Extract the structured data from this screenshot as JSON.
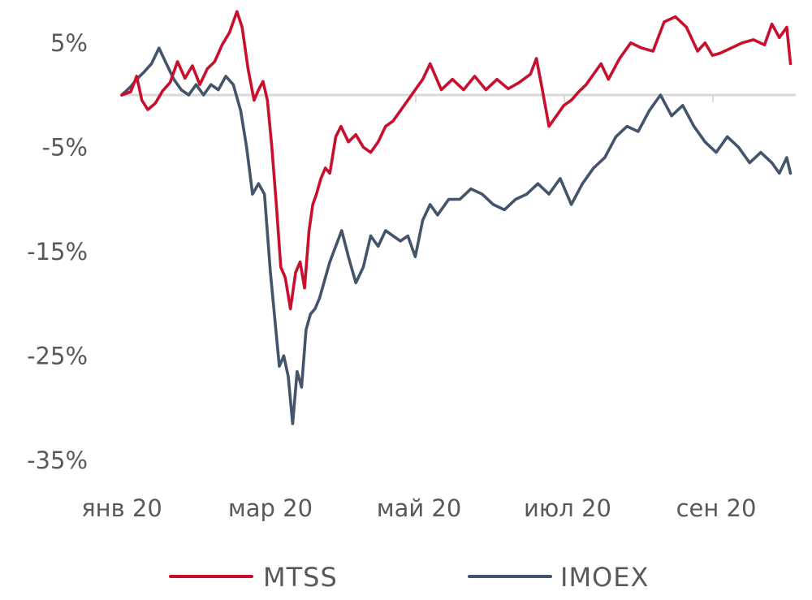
{
  "chart_data": {
    "type": "line",
    "title": "",
    "xlabel": "",
    "ylabel": "",
    "ylim": [
      -35,
      9
    ],
    "ytick_values": [
      5,
      -5,
      -15,
      -25,
      -35
    ],
    "ytick_labels": [
      "5%",
      "-5%",
      "-15%",
      "-25%",
      "-35%"
    ],
    "xlim": [
      0,
      9.0
    ],
    "xtick_positions": [
      0,
      2,
      4,
      6,
      8
    ],
    "xtick_labels": [
      "янв 20",
      "мар 20",
      "май 20",
      "июл 20",
      "сен 20"
    ],
    "grid": false,
    "zero_line": true,
    "legend_position": "bottom",
    "series": [
      {
        "name": "MTSS",
        "color": "#c8102e",
        "x": [
          0,
          0.12,
          0.2,
          0.27,
          0.35,
          0.45,
          0.55,
          0.65,
          0.75,
          0.85,
          0.95,
          1.05,
          1.15,
          1.25,
          1.35,
          1.45,
          1.55,
          1.62,
          1.7,
          1.78,
          1.84,
          1.9,
          1.96,
          2.02,
          2.08,
          2.14,
          2.2,
          2.27,
          2.34,
          2.4,
          2.46,
          2.52,
          2.57,
          2.62,
          2.68,
          2.74,
          2.8,
          2.88,
          2.95,
          3.05,
          3.15,
          3.25,
          3.35,
          3.45,
          3.55,
          3.65,
          3.75,
          3.85,
          3.95,
          4.05,
          4.15,
          4.3,
          4.45,
          4.6,
          4.75,
          4.9,
          5.05,
          5.2,
          5.35,
          5.5,
          5.58,
          5.66,
          5.75,
          5.85,
          5.95,
          6.05,
          6.15,
          6.25,
          6.35,
          6.45,
          6.55,
          6.7,
          6.85,
          7.0,
          7.15,
          7.3,
          7.45,
          7.6,
          7.75,
          7.85,
          7.95,
          8.05,
          8.2,
          8.35,
          8.5,
          8.65,
          8.75,
          8.85,
          8.95,
          9.0
        ],
        "values": [
          0,
          0.3,
          1.8,
          -0.5,
          -1.4,
          -0.8,
          0.4,
          1.2,
          3.2,
          1.6,
          2.8,
          1.0,
          2.5,
          3.2,
          4.8,
          6.0,
          8.0,
          6.5,
          2.5,
          -0.5,
          0.5,
          1.3,
          -0.5,
          -5.0,
          -10.5,
          -16.5,
          -17.5,
          -20.5,
          -17.0,
          -16.0,
          -18.5,
          -13.0,
          -10.5,
          -9.5,
          -8.0,
          -7.0,
          -7.5,
          -4.0,
          -3.0,
          -4.5,
          -3.8,
          -5.0,
          -5.5,
          -4.5,
          -3.0,
          -2.5,
          -1.5,
          -0.5,
          0.5,
          1.5,
          3.0,
          0.5,
          1.5,
          0.5,
          1.8,
          0.5,
          1.5,
          0.6,
          1.2,
          2.0,
          3.5,
          0.5,
          -3.0,
          -2.0,
          -1.0,
          -0.5,
          0.3,
          1.0,
          2.0,
          3.0,
          1.5,
          3.5,
          5.0,
          4.5,
          4.2,
          7.0,
          7.5,
          6.5,
          4.2,
          5.0,
          3.8,
          4.0,
          4.5,
          5.0,
          5.3,
          4.8,
          6.8,
          5.5,
          6.5,
          3.0
        ]
      },
      {
        "name": "IMOEX",
        "color": "#44546a",
        "x": [
          0,
          0.12,
          0.2,
          0.3,
          0.4,
          0.5,
          0.6,
          0.7,
          0.8,
          0.9,
          1.0,
          1.1,
          1.2,
          1.3,
          1.4,
          1.5,
          1.6,
          1.68,
          1.76,
          1.84,
          1.92,
          2.0,
          2.06,
          2.12,
          2.18,
          2.24,
          2.3,
          2.36,
          2.42,
          2.48,
          2.54,
          2.6,
          2.66,
          2.72,
          2.8,
          2.88,
          2.96,
          3.05,
          3.15,
          3.25,
          3.35,
          3.45,
          3.55,
          3.65,
          3.75,
          3.85,
          3.95,
          4.05,
          4.15,
          4.25,
          4.4,
          4.55,
          4.7,
          4.85,
          5.0,
          5.15,
          5.3,
          5.45,
          5.6,
          5.75,
          5.9,
          6.05,
          6.2,
          6.35,
          6.5,
          6.65,
          6.8,
          6.95,
          7.1,
          7.25,
          7.4,
          7.55,
          7.7,
          7.85,
          8.0,
          8.15,
          8.3,
          8.45,
          8.6,
          8.75,
          8.85,
          8.95,
          9.0
        ],
        "values": [
          0,
          0.8,
          1.5,
          2.2,
          3.0,
          4.5,
          3.0,
          1.5,
          0.5,
          0,
          1.0,
          0,
          1.0,
          0.5,
          1.8,
          1.0,
          -1.5,
          -5.0,
          -9.5,
          -8.5,
          -9.5,
          -17.0,
          -21.5,
          -26.0,
          -25.0,
          -27.0,
          -31.5,
          -26.5,
          -28.0,
          -22.5,
          -21.0,
          -20.5,
          -19.5,
          -18.0,
          -16.0,
          -14.5,
          -13.0,
          -15.5,
          -18.0,
          -16.5,
          -13.5,
          -14.5,
          -13.0,
          -13.5,
          -14.0,
          -13.5,
          -15.5,
          -12.0,
          -10.5,
          -11.5,
          -10.0,
          -10.0,
          -9.0,
          -9.5,
          -10.5,
          -11.0,
          -10.0,
          -9.5,
          -8.5,
          -9.5,
          -8.0,
          -10.5,
          -8.5,
          -7.0,
          -6.0,
          -4.0,
          -3.0,
          -3.5,
          -1.5,
          0,
          -2.0,
          -1.0,
          -3.0,
          -4.5,
          -5.5,
          -4.0,
          -5.0,
          -6.5,
          -5.5,
          -6.5,
          -7.5,
          -6.0,
          -7.5
        ]
      }
    ]
  }
}
